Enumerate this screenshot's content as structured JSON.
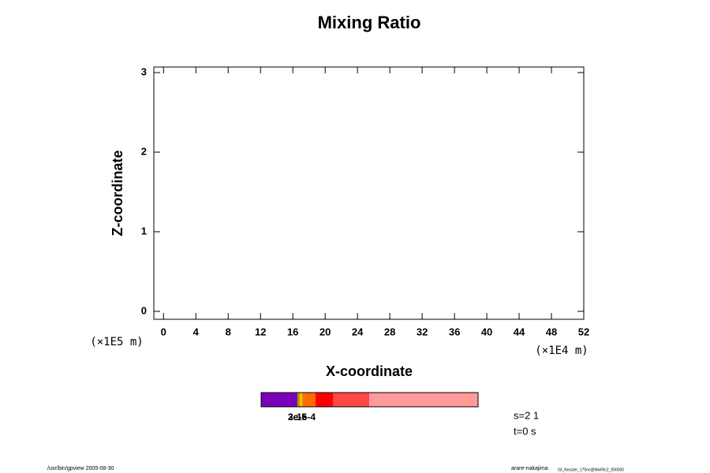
{
  "chart_data": {
    "type": "contour",
    "title": "Mixing Ratio",
    "x_label": "X-coordinate",
    "y_label": "Z-coordinate",
    "x_unit": "(×1E4 m)",
    "y_unit": "(×1E5 m)",
    "xlim": [
      -1.2,
      52
    ],
    "xticks": [
      0,
      4,
      8,
      12,
      16,
      20,
      24,
      28,
      32,
      36,
      40,
      44,
      48,
      52
    ],
    "ylim": [
      -0.1,
      3.07
    ],
    "yticks": [
      0,
      1,
      2,
      3
    ],
    "colorbar": {
      "colors": [
        "#7a00b8",
        "#c09000",
        "#f0c000",
        "#f08000",
        "#ff6a00",
        "#ff0000",
        "#ff4848",
        "#ff9a9a"
      ],
      "labels": [
        "2e-5",
        "3e-5",
        "1e-4"
      ]
    },
    "annotations": [
      "s=2 1",
      "t=0 s"
    ],
    "footer_left": "/usr/bin/gpview 2005-08-30",
    "footer_right": "arare-nakajima",
    "footer_right_small": "03_Kessler_175nc@MixRtc2_000000"
  }
}
